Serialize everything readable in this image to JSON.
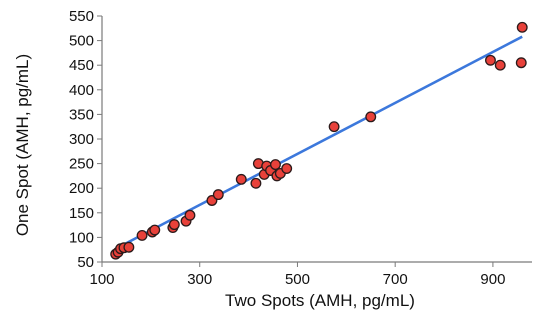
{
  "chart_data": {
    "type": "scatter",
    "title": "",
    "xlabel": "Two Spots (AMH, pg/mL)",
    "ylabel": "One Spot (AMH, pg/mL)",
    "xlim": [
      100,
      980
    ],
    "ylim": [
      50,
      550
    ],
    "xticks": [
      100,
      300,
      500,
      700,
      900
    ],
    "yticks": [
      50,
      100,
      150,
      200,
      250,
      300,
      350,
      400,
      450,
      500,
      550
    ],
    "grid": false,
    "legend": "none",
    "colors": {
      "marker_fill": "#e8413a",
      "marker_stroke": "#2b1a1a",
      "trend_line": "#3c78dc"
    },
    "trend_line": {
      "x": [
        130,
        960
      ],
      "y": [
        78,
        508
      ]
    },
    "points": [
      {
        "x": 128,
        "y": 66
      },
      {
        "x": 133,
        "y": 70
      },
      {
        "x": 138,
        "y": 77
      },
      {
        "x": 145,
        "y": 79
      },
      {
        "x": 155,
        "y": 80
      },
      {
        "x": 182,
        "y": 104
      },
      {
        "x": 203,
        "y": 111
      },
      {
        "x": 208,
        "y": 115
      },
      {
        "x": 245,
        "y": 120
      },
      {
        "x": 248,
        "y": 126
      },
      {
        "x": 272,
        "y": 133
      },
      {
        "x": 280,
        "y": 145
      },
      {
        "x": 325,
        "y": 175
      },
      {
        "x": 338,
        "y": 187
      },
      {
        "x": 385,
        "y": 218
      },
      {
        "x": 415,
        "y": 210
      },
      {
        "x": 420,
        "y": 250
      },
      {
        "x": 432,
        "y": 228
      },
      {
        "x": 437,
        "y": 245
      },
      {
        "x": 445,
        "y": 236
      },
      {
        "x": 455,
        "y": 248
      },
      {
        "x": 458,
        "y": 225
      },
      {
        "x": 465,
        "y": 230
      },
      {
        "x": 478,
        "y": 240
      },
      {
        "x": 575,
        "y": 325
      },
      {
        "x": 650,
        "y": 345
      },
      {
        "x": 895,
        "y": 460
      },
      {
        "x": 915,
        "y": 450
      },
      {
        "x": 958,
        "y": 455
      },
      {
        "x": 960,
        "y": 527
      }
    ]
  }
}
